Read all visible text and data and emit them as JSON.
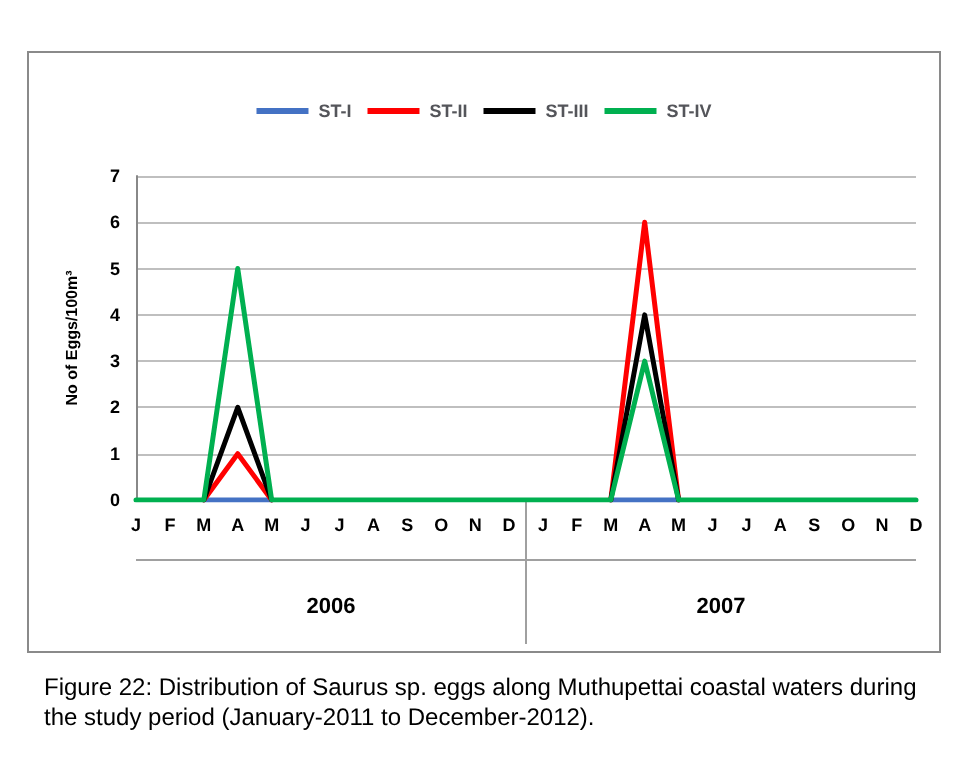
{
  "chart_data": {
    "type": "line",
    "ylabel": "No of Eggs/100m³",
    "categories": [
      "J",
      "F",
      "M",
      "A",
      "M",
      "J",
      "J",
      "A",
      "S",
      "O",
      "N",
      "D",
      "J",
      "F",
      "M",
      "A",
      "M",
      "J",
      "J",
      "A",
      "S",
      "O",
      "N",
      "D"
    ],
    "series": [
      {
        "name": "ST-I",
        "color": "#4472c4",
        "values": [
          null,
          null,
          0,
          0,
          0,
          null,
          null,
          null,
          null,
          null,
          null,
          null,
          null,
          null,
          0,
          0,
          0,
          null,
          null,
          null,
          null,
          null,
          null,
          null
        ]
      },
      {
        "name": "ST-II",
        "color": "#ff0000",
        "values": [
          null,
          null,
          0,
          1,
          0,
          null,
          null,
          null,
          null,
          null,
          null,
          null,
          null,
          null,
          0,
          6,
          0,
          null,
          null,
          null,
          null,
          null,
          null,
          null
        ]
      },
      {
        "name": "ST-III",
        "color": "#000000",
        "values": [
          null,
          null,
          0,
          2,
          0,
          null,
          null,
          null,
          null,
          null,
          null,
          null,
          null,
          null,
          0,
          4,
          0,
          null,
          null,
          null,
          null,
          null,
          null,
          null
        ]
      },
      {
        "name": "ST-IV",
        "color": "#00b050",
        "values": [
          0,
          0,
          0,
          5,
          0,
          0,
          0,
          0,
          0,
          0,
          0,
          0,
          0,
          0,
          0,
          3,
          0,
          0,
          0,
          0,
          0,
          0,
          0,
          0
        ]
      }
    ],
    "ylim": [
      0,
      7
    ],
    "yticks": [
      0,
      1,
      2,
      3,
      4,
      5,
      6,
      7
    ],
    "grid": "y",
    "legend": "top",
    "marker": "none",
    "line_style": "solid",
    "annotations": [
      "2006",
      "2007",
      "Figure 22: Distribution of Saurus sp. eggs along Muthupettai coastal waters during the study period (January-2011 to December-2012)."
    ]
  }
}
